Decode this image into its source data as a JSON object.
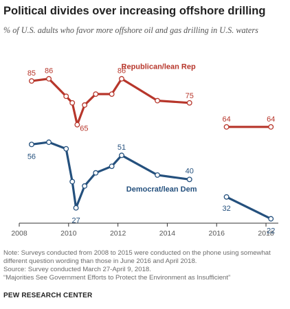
{
  "header": {
    "title": "Political divides over increasing offshore drilling",
    "subtitle": "% of U.S. adults who favor more offshore oil and gas drilling in U.S. waters"
  },
  "footer": {
    "note_1": "Note: Surveys conducted from 2008 to 2015 were conducted on the phone using somewhat",
    "note_2": "different question wording than those in June 2016 and April 2018.",
    "source": "Source: Survey conducted March 27-April 9, 2018.",
    "report": "“Majorities See Government Efforts to Protect the Environment as Insufficient”",
    "brand": "PEW RESEARCH CENTER"
  },
  "chart_data": {
    "type": "line",
    "title": "Political divides over increasing offshore drilling",
    "subtitle": "% of U.S. adults who favor more offshore oil and gas drilling in U.S. waters",
    "xlabel": "",
    "ylabel": "",
    "xlim": [
      2008,
      2018.5
    ],
    "ylim": [
      0,
      100
    ],
    "x_ticks": [
      2008,
      2010,
      2012,
      2014,
      2016,
      2018
    ],
    "grid": false,
    "legend": "direct labels on lines",
    "series": [
      {
        "name": "Republican/lean Rep",
        "color": "#b7362b",
        "segments": [
          [
            {
              "x": 2008.5,
              "y": 85,
              "label": "85"
            },
            {
              "x": 2009.2,
              "y": 86,
              "label": "86"
            },
            {
              "x": 2009.9,
              "y": 78
            },
            {
              "x": 2010.15,
              "y": 75
            },
            {
              "x": 2010.35,
              "y": 65,
              "label": "65"
            },
            {
              "x": 2010.65,
              "y": 74
            },
            {
              "x": 2011.1,
              "y": 79
            },
            {
              "x": 2011.75,
              "y": 79
            },
            {
              "x": 2012.15,
              "y": 86,
              "label": "86"
            },
            {
              "x": 2013.6,
              "y": 76
            },
            {
              "x": 2014.9,
              "y": 75,
              "label": "75"
            }
          ],
          [
            {
              "x": 2016.4,
              "y": 64,
              "label": "64"
            },
            {
              "x": 2018.2,
              "y": 64,
              "label": "64"
            }
          ]
        ]
      },
      {
        "name": "Democrat/lean Dem",
        "color": "#24507d",
        "segments": [
          [
            {
              "x": 2008.5,
              "y": 56,
              "label": "56"
            },
            {
              "x": 2009.2,
              "y": 57
            },
            {
              "x": 2009.9,
              "y": 54
            },
            {
              "x": 2010.15,
              "y": 39
            },
            {
              "x": 2010.3,
              "y": 27,
              "label": "27"
            },
            {
              "x": 2010.65,
              "y": 37
            },
            {
              "x": 2011.1,
              "y": 43
            },
            {
              "x": 2011.75,
              "y": 46
            },
            {
              "x": 2012.15,
              "y": 51,
              "label": "51"
            },
            {
              "x": 2013.6,
              "y": 42
            },
            {
              "x": 2014.9,
              "y": 40,
              "label": "40"
            }
          ],
          [
            {
              "x": 2016.4,
              "y": 32,
              "label": "32"
            },
            {
              "x": 2018.2,
              "y": 22,
              "label": "22"
            }
          ]
        ]
      }
    ]
  }
}
